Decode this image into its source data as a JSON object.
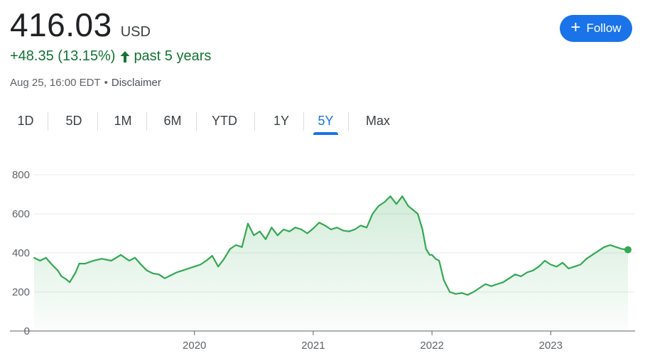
{
  "quote": {
    "price": "416.03",
    "currency": "USD",
    "change": "+48.35 (13.15%)",
    "change_period": "past 5 years",
    "timestamp": "Aug 25, 16:00 EDT",
    "separator": "•",
    "disclaimer": "Disclaimer"
  },
  "follow_button": {
    "label": "Follow"
  },
  "ranges": [
    "1D",
    "5D",
    "1M",
    "6M",
    "YTD",
    "1Y",
    "5Y",
    "Max"
  ],
  "active_range": "5Y",
  "colors": {
    "line": "#34a853",
    "accent": "#1a73e8",
    "positive": "#137333"
  },
  "chart_data": {
    "type": "area",
    "title": "",
    "xlabel": "",
    "ylabel": "",
    "ylim": [
      0,
      800
    ],
    "yticks": [
      0,
      200,
      400,
      600,
      800
    ],
    "xlim": [
      2018.65,
      2023.65
    ],
    "xticks": [
      {
        "label": "2020",
        "value": 2020
      },
      {
        "label": "2021",
        "value": 2021
      },
      {
        "label": "2022",
        "value": 2022
      },
      {
        "label": "2023",
        "value": 2023
      }
    ],
    "grid": true,
    "series": [
      {
        "x": [
          2018.65,
          2018.7,
          2018.75,
          2018.8,
          2018.85,
          2018.88,
          2018.92,
          2018.95,
          2019.0,
          2019.03,
          2019.08,
          2019.15,
          2019.22,
          2019.3,
          2019.38,
          2019.45,
          2019.5,
          2019.55,
          2019.6,
          2019.65,
          2019.7,
          2019.75,
          2019.8,
          2019.85,
          2019.9,
          2019.95,
          2020.0,
          2020.05,
          2020.1,
          2020.15,
          2020.2,
          2020.25,
          2020.3,
          2020.35,
          2020.4,
          2020.45,
          2020.5,
          2020.55,
          2020.6,
          2020.65,
          2020.7,
          2020.75,
          2020.8,
          2020.85,
          2020.9,
          2020.95,
          2021.0,
          2021.05,
          2021.1,
          2021.15,
          2021.2,
          2021.25,
          2021.3,
          2021.35,
          2021.4,
          2021.45,
          2021.5,
          2021.55,
          2021.6,
          2021.65,
          2021.7,
          2021.75,
          2021.8,
          2021.84,
          2021.88,
          2021.92,
          2021.95,
          2021.98,
          2022.0,
          2022.03,
          2022.06,
          2022.1,
          2022.15,
          2022.2,
          2022.25,
          2022.3,
          2022.35,
          2022.4,
          2022.45,
          2022.5,
          2022.55,
          2022.6,
          2022.65,
          2022.7,
          2022.75,
          2022.8,
          2022.85,
          2022.9,
          2022.95,
          2023.0,
          2023.05,
          2023.1,
          2023.15,
          2023.2,
          2023.25,
          2023.3,
          2023.35,
          2023.4,
          2023.45,
          2023.5,
          2023.55,
          2023.6,
          2023.65
        ],
        "values": [
          375,
          360,
          375,
          340,
          310,
          280,
          265,
          250,
          300,
          345,
          345,
          360,
          370,
          360,
          390,
          360,
          375,
          340,
          310,
          295,
          290,
          270,
          285,
          300,
          310,
          320,
          330,
          340,
          360,
          385,
          330,
          370,
          420,
          440,
          430,
          550,
          490,
          510,
          470,
          530,
          490,
          520,
          510,
          530,
          520,
          500,
          525,
          555,
          540,
          520,
          530,
          515,
          510,
          520,
          540,
          530,
          600,
          640,
          660,
          690,
          650,
          690,
          640,
          620,
          600,
          520,
          420,
          390,
          390,
          370,
          360,
          260,
          200,
          190,
          195,
          185,
          200,
          220,
          240,
          230,
          240,
          250,
          270,
          290,
          280,
          300,
          310,
          330,
          360,
          340,
          330,
          350,
          320,
          330,
          340,
          370,
          390,
          410,
          430,
          440,
          430,
          420,
          416
        ]
      }
    ],
    "last_value": 416.03
  }
}
